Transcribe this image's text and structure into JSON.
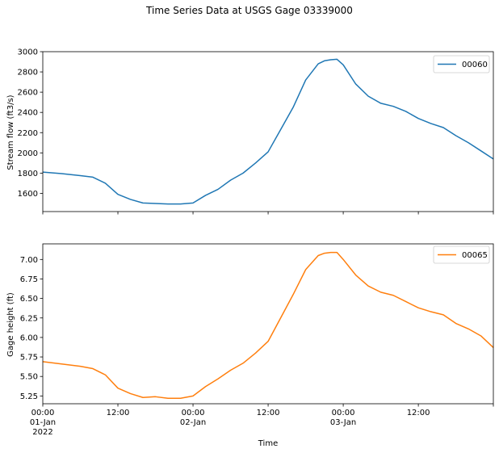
{
  "figure": {
    "title": "Time Series Data at USGS Gage 03339000"
  },
  "chart_data": [
    {
      "type": "line",
      "title": "",
      "xlabel": "",
      "ylabel": "Stream flow (ft3/s)",
      "xlim": [
        "2022-01-01 00:00",
        "2022-01-03 23:59"
      ],
      "ylim": [
        1420,
        3000
      ],
      "yticks": [
        1600,
        1800,
        2000,
        2200,
        2400,
        2600,
        2800,
        3000
      ],
      "legend_placement": "top-right",
      "grid": false,
      "series": [
        {
          "name": "00060",
          "color": "#1f77b4",
          "x": [
            "2022-01-01 00:00",
            "2022-01-01 03:00",
            "2022-01-01 06:00",
            "2022-01-01 08:00",
            "2022-01-01 10:00",
            "2022-01-01 12:00",
            "2022-01-01 14:00",
            "2022-01-01 16:00",
            "2022-01-01 18:00",
            "2022-01-01 20:00",
            "2022-01-01 22:00",
            "2022-01-02 00:00",
            "2022-01-02 02:00",
            "2022-01-02 04:00",
            "2022-01-02 06:00",
            "2022-01-02 08:00",
            "2022-01-02 10:00",
            "2022-01-02 12:00",
            "2022-01-02 14:00",
            "2022-01-02 16:00",
            "2022-01-02 18:00",
            "2022-01-02 20:00",
            "2022-01-02 21:00",
            "2022-01-02 22:00",
            "2022-01-02 23:00",
            "2022-01-03 00:00",
            "2022-01-03 02:00",
            "2022-01-03 04:00",
            "2022-01-03 06:00",
            "2022-01-03 08:00",
            "2022-01-03 10:00",
            "2022-01-03 12:00",
            "2022-01-03 14:00",
            "2022-01-03 16:00",
            "2022-01-03 18:00",
            "2022-01-03 20:00",
            "2022-01-03 22:00",
            "2022-01-03 23:59"
          ],
          "y": [
            1810,
            1795,
            1775,
            1760,
            1700,
            1590,
            1540,
            1505,
            1500,
            1495,
            1495,
            1505,
            1580,
            1640,
            1730,
            1800,
            1900,
            2010,
            2230,
            2450,
            2720,
            2880,
            2910,
            2920,
            2925,
            2870,
            2680,
            2560,
            2490,
            2460,
            2410,
            2340,
            2290,
            2250,
            2170,
            2100,
            2020,
            1940
          ]
        }
      ]
    },
    {
      "type": "line",
      "title": "",
      "xlabel": "Time",
      "ylabel": "Gage height (ft)",
      "xlim": [
        "2022-01-01 00:00",
        "2022-01-03 23:59"
      ],
      "ylim": [
        5.15,
        7.2
      ],
      "yticks": [
        5.25,
        5.5,
        5.75,
        6.0,
        6.25,
        6.5,
        6.75,
        7.0
      ],
      "ytick_labels": [
        "5.25",
        "5.50",
        "5.75",
        "6.00",
        "6.25",
        "6.50",
        "6.75",
        "7.00"
      ],
      "xticks": [
        "2022-01-01 00:00",
        "2022-01-01 12:00",
        "2022-01-02 00:00",
        "2022-01-02 12:00",
        "2022-01-03 00:00",
        "2022-01-03 12:00"
      ],
      "xtick_labels": [
        [
          "00:00",
          "01-Jan",
          "2022"
        ],
        [
          "12:00"
        ],
        [
          "00:00",
          "02-Jan"
        ],
        [
          "12:00"
        ],
        [
          "00:00",
          "03-Jan"
        ],
        [
          "12:00"
        ]
      ],
      "legend_placement": "top-right",
      "grid": false,
      "series": [
        {
          "name": "00065",
          "color": "#ff7f0e",
          "x": [
            "2022-01-01 00:00",
            "2022-01-01 03:00",
            "2022-01-01 06:00",
            "2022-01-01 08:00",
            "2022-01-01 10:00",
            "2022-01-01 12:00",
            "2022-01-01 14:00",
            "2022-01-01 16:00",
            "2022-01-01 18:00",
            "2022-01-01 20:00",
            "2022-01-01 22:00",
            "2022-01-02 00:00",
            "2022-01-02 02:00",
            "2022-01-02 04:00",
            "2022-01-02 06:00",
            "2022-01-02 08:00",
            "2022-01-02 10:00",
            "2022-01-02 12:00",
            "2022-01-02 14:00",
            "2022-01-02 16:00",
            "2022-01-02 18:00",
            "2022-01-02 20:00",
            "2022-01-02 21:00",
            "2022-01-02 22:00",
            "2022-01-02 23:00",
            "2022-01-03 00:00",
            "2022-01-03 02:00",
            "2022-01-03 04:00",
            "2022-01-03 06:00",
            "2022-01-03 08:00",
            "2022-01-03 10:00",
            "2022-01-03 12:00",
            "2022-01-03 14:00",
            "2022-01-03 16:00",
            "2022-01-03 18:00",
            "2022-01-03 20:00",
            "2022-01-03 22:00",
            "2022-01-03 23:59"
          ],
          "y": [
            5.69,
            5.66,
            5.63,
            5.6,
            5.52,
            5.35,
            5.28,
            5.23,
            5.24,
            5.22,
            5.22,
            5.25,
            5.37,
            5.47,
            5.58,
            5.67,
            5.8,
            5.95,
            6.25,
            6.55,
            6.87,
            7.05,
            7.08,
            7.09,
            7.09,
            7.0,
            6.8,
            6.66,
            6.58,
            6.54,
            6.46,
            6.38,
            6.33,
            6.29,
            6.18,
            6.11,
            6.02,
            5.87
          ]
        }
      ]
    }
  ]
}
